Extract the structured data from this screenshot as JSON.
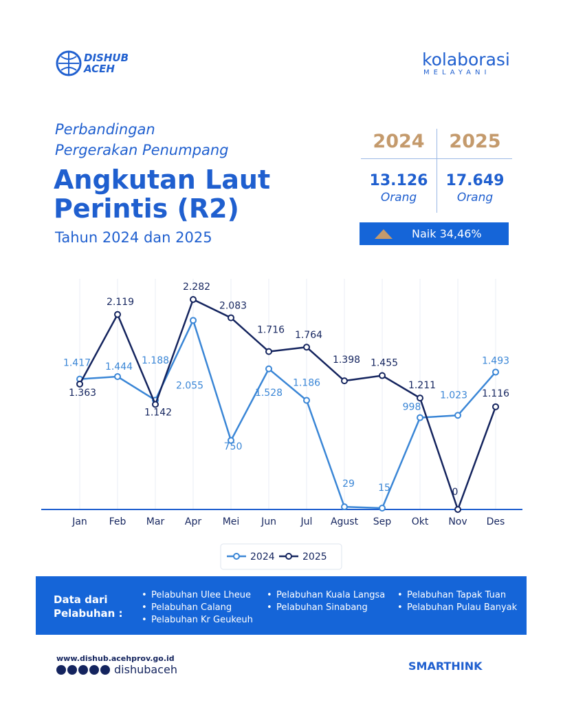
{
  "header": {
    "logo_top": "DISHUB",
    "logo_bottom": "ACEH",
    "brand_right": "kolaborasi",
    "brand_right_sub": "MELAYANI"
  },
  "title": {
    "line1": "Perbandingan",
    "line2": "Pergerakan Penumpang",
    "main1": "Angkutan Laut",
    "main2": "Perintis (R2)",
    "sub": "Tahun 2024 dan 2025"
  },
  "stats": {
    "years": [
      "2024",
      "2025"
    ],
    "totals": [
      "13.126",
      "17.649"
    ],
    "unit": "Orang",
    "change": "Naik 34,46%"
  },
  "chart_data": {
    "type": "line",
    "categories": [
      "Jan",
      "Feb",
      "Mar",
      "Apr",
      "Mei",
      "Jun",
      "Jul",
      "Agust",
      "Sep",
      "Okt",
      "Nov",
      "Des"
    ],
    "series": [
      {
        "name": "2024",
        "color": "#3a86d6",
        "values": [
          1417,
          1444,
          1188,
          2055,
          750,
          1528,
          1186,
          29,
          15,
          998,
          1023,
          1493
        ],
        "value_labels": [
          "1.417",
          "1.444",
          "1.188",
          "2.055",
          "750",
          "1.528",
          "1.186",
          "29",
          "15",
          "998",
          "1.023",
          "1.493"
        ]
      },
      {
        "name": "2025",
        "color": "#14245e",
        "values": [
          1363,
          2119,
          1142,
          2282,
          2083,
          1716,
          1764,
          1398,
          1455,
          1211,
          0,
          1116
        ],
        "value_labels": [
          "1.363",
          "2.119",
          "1.142",
          "2.282",
          "2.083",
          "1.716",
          "1.764",
          "1.398",
          "1.455",
          "1.211",
          "0",
          "1.116"
        ]
      }
    ]
  },
  "sources": {
    "label_line1": "Data dari",
    "label_line2": "Pelabuhan :",
    "ports": [
      "Pelabuhan Ulee Lheue",
      "Pelabuhan Calang",
      "Pelabuhan Kr Geukeuh",
      "Pelabuhan Kuala Langsa",
      "Pelabuhan Sinabang",
      "Pelabuhan Tapak Tuan",
      "Pelabuhan Pulau Banyak"
    ]
  },
  "footer": {
    "website": "www.dishub.acehprov.go.id",
    "social": "dishubaceh",
    "brand": "SMARTHINK"
  }
}
